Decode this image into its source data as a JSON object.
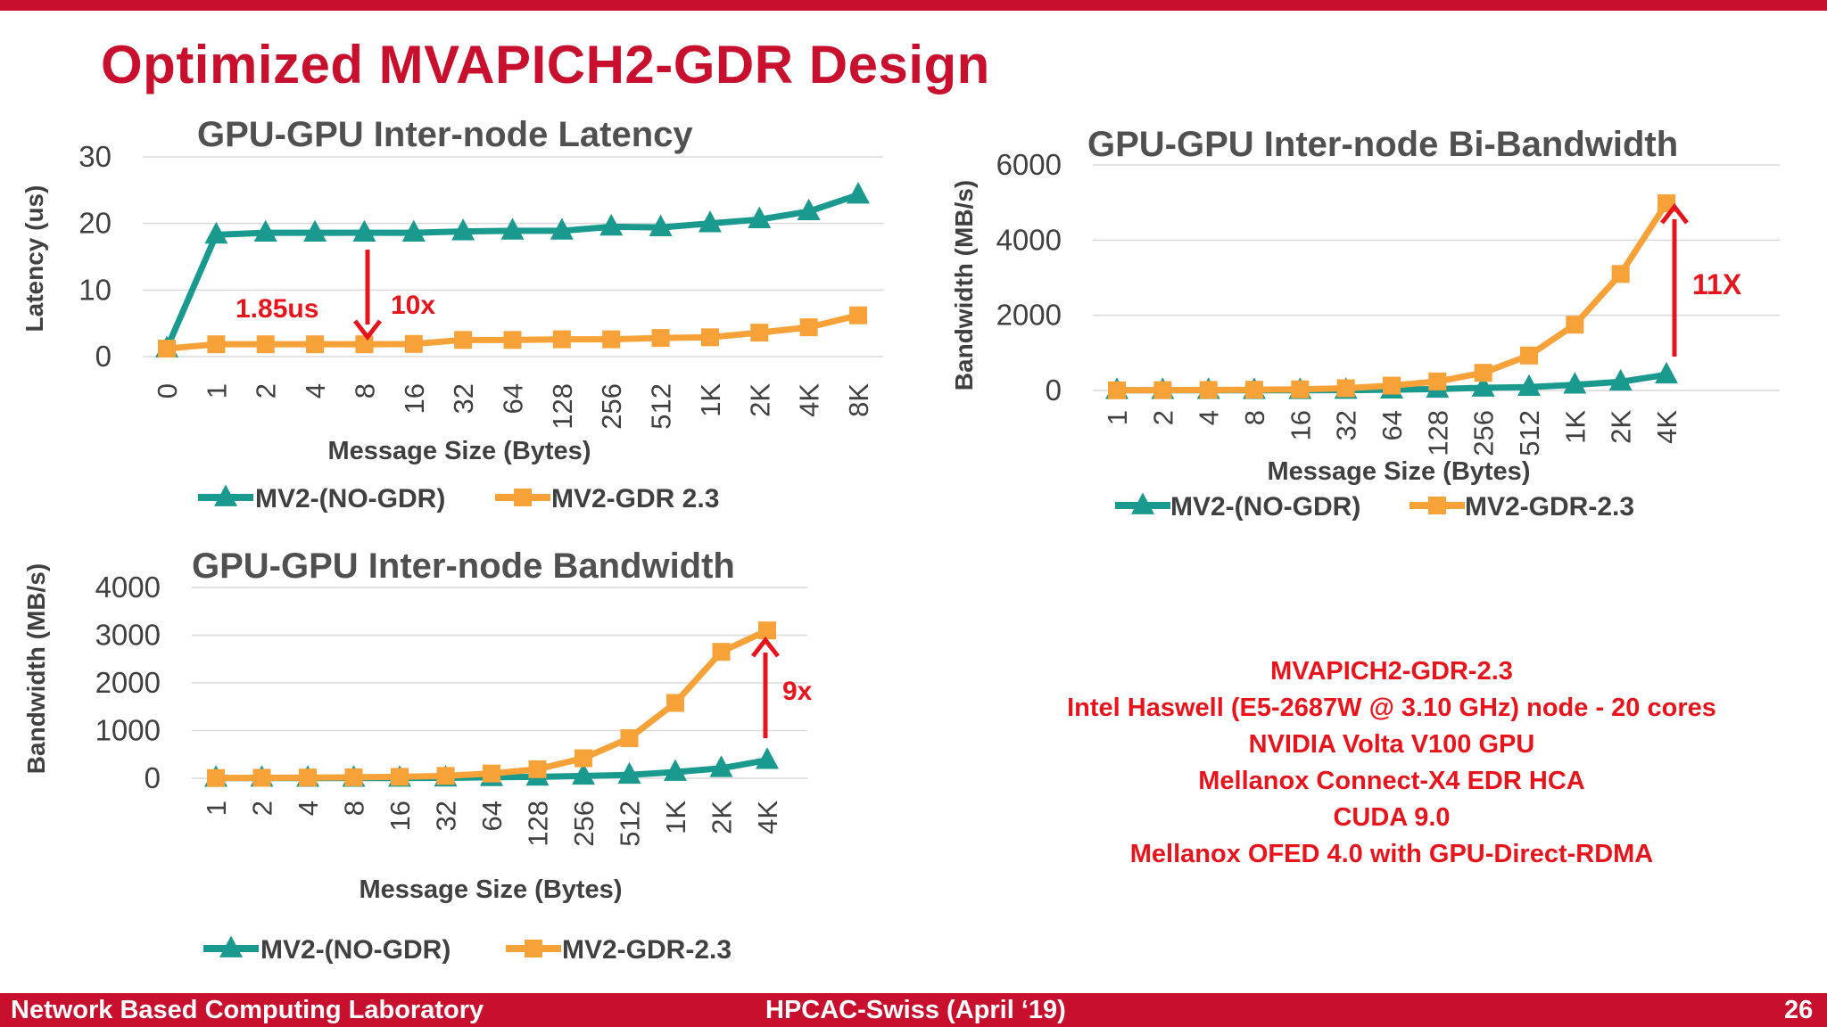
{
  "slide": {
    "title": "Optimized MVAPICH2-GDR Design"
  },
  "footer": {
    "left": "Network Based Computing Laboratory",
    "center": "HPCAC-Swiss (April ‘19)",
    "right": "26"
  },
  "info_lines": [
    "MVAPICH2-GDR-2.3",
    "Intel Haswell  (E5-2687W @ 3.10 GHz) node - 20 cores",
    "NVIDIA Volta V100 GPU",
    "Mellanox Connect-X4 EDR HCA",
    "CUDA 9.0",
    "Mellanox OFED 4.0 with GPU-Direct-RDMA"
  ],
  "colors": {
    "accent": "#c8102e",
    "annotation": "#e8141c",
    "series_teal": "#1a9a8e",
    "series_orange": "#f7a239",
    "grid": "#d9d9d9",
    "text": "#404040"
  },
  "chart_data": [
    {
      "id": "latency",
      "type": "line",
      "title": "GPU-GPU Inter-node Latency",
      "xlabel": "Message Size (Bytes)",
      "ylabel": "Latency (us)",
      "ylim": [
        0,
        30
      ],
      "yticks": [
        0,
        10,
        20,
        30
      ],
      "categories": [
        "0",
        "1",
        "2",
        "4",
        "8",
        "16",
        "32",
        "64",
        "128",
        "256",
        "512",
        "1K",
        "2K",
        "4K",
        "8K"
      ],
      "series": [
        {
          "name": "MV2-(NO-GDR)",
          "marker": "triangle",
          "color": "#1a9a8e",
          "values": [
            1.2,
            18.3,
            18.6,
            18.6,
            18.6,
            18.6,
            18.8,
            18.9,
            18.9,
            19.5,
            19.4,
            20.0,
            20.6,
            21.8,
            24.3
          ]
        },
        {
          "name": "MV2-GDR 2.3",
          "marker": "square",
          "color": "#f7a239",
          "values": [
            1.2,
            1.85,
            1.85,
            1.85,
            1.85,
            1.9,
            2.5,
            2.5,
            2.6,
            2.6,
            2.8,
            2.9,
            3.6,
            4.4,
            6.2
          ]
        }
      ],
      "annotations": [
        {
          "text": "1.85us",
          "kind": "label"
        },
        {
          "text": "10x",
          "kind": "arrow-down"
        }
      ],
      "legend": "bottom",
      "grid": true
    },
    {
      "id": "bibandwidth",
      "type": "line",
      "title": "GPU-GPU Inter-node Bi-Bandwidth",
      "xlabel": "Message Size (Bytes)",
      "ylabel": "Bandwidth (MB/s)",
      "ylim": [
        0,
        6000
      ],
      "yticks": [
        0,
        2000,
        4000,
        6000
      ],
      "categories": [
        "1",
        "2",
        "4",
        "8",
        "16",
        "32",
        "64",
        "128",
        "256",
        "512",
        "1K",
        "2K",
        "4K"
      ],
      "series": [
        {
          "name": "MV2-(NO-GDR)",
          "marker": "triangle",
          "color": "#1a9a8e",
          "values": [
            5,
            5,
            5,
            5,
            5,
            10,
            20,
            40,
            70,
            90,
            150,
            230,
            420
          ]
        },
        {
          "name": "MV2-GDR-2.3",
          "marker": "square",
          "color": "#f7a239",
          "values": [
            5,
            10,
            15,
            20,
            30,
            60,
            130,
            240,
            470,
            930,
            1750,
            3100,
            4980
          ]
        }
      ],
      "annotations": [
        {
          "text": "11X",
          "kind": "arrow-up"
        }
      ],
      "legend": "bottom",
      "grid": true
    },
    {
      "id": "bandwidth",
      "type": "line",
      "title": "GPU-GPU Inter-node Bandwidth",
      "xlabel": "Message Size (Bytes)",
      "ylabel": "Bandwidth (MB/s)",
      "ylim": [
        0,
        4000
      ],
      "yticks": [
        0,
        1000,
        2000,
        3000,
        4000
      ],
      "categories": [
        "1",
        "2",
        "4",
        "8",
        "16",
        "32",
        "64",
        "128",
        "256",
        "512",
        "1K",
        "2K",
        "4K"
      ],
      "series": [
        {
          "name": "MV2-(NO-GDR)",
          "marker": "triangle",
          "color": "#1a9a8e",
          "values": [
            5,
            5,
            5,
            5,
            5,
            10,
            20,
            30,
            50,
            70,
            130,
            210,
            380
          ]
        },
        {
          "name": "MV2-GDR-2.3",
          "marker": "square",
          "color": "#f7a239",
          "values": [
            5,
            10,
            15,
            20,
            30,
            50,
            100,
            190,
            420,
            840,
            1580,
            2650,
            3100
          ]
        }
      ],
      "annotations": [
        {
          "text": "9x",
          "kind": "arrow-up"
        }
      ],
      "legend": "bottom",
      "grid": true
    }
  ]
}
